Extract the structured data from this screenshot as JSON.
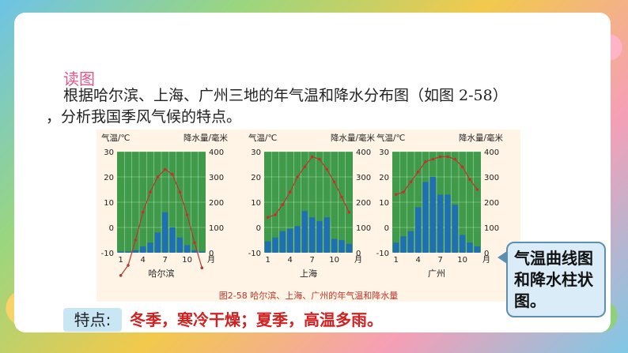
{
  "slide": {
    "heading": "读图",
    "paragraph_line1": "根据哈尔滨、上海、广州三地的年气温和降水分布图（如图 2-58）",
    "paragraph_line2": "，分析我国季风气候的特点。"
  },
  "figure": {
    "caption": "图2-58  哈尔滨、上海、广州的年气温和降水量"
  },
  "callout": {
    "text": "气温曲线图和降水柱状图。"
  },
  "feature": {
    "label": "特点:",
    "text": "冬季，寒冷干燥；夏季，高温多雨。"
  },
  "colors": {
    "plot_bg": "#3f9b4a",
    "bar": "#1f6fb5",
    "curve": "#c0342b",
    "heading": "#e0558a",
    "feature_text": "#d32020"
  },
  "chart_data": [
    {
      "type": "bar",
      "title": "哈尔滨",
      "left_axis_label": "气温/℃",
      "right_axis_label": "降水量/毫米",
      "x_unit": "月",
      "x_ticks": [
        "1",
        "4",
        "7",
        "10"
      ],
      "temp_ticks": [
        "30",
        "20",
        "10",
        "0",
        "-10"
      ],
      "precip_ticks": [
        "400",
        "300",
        "200",
        "100",
        "0"
      ],
      "ylim_temp": [
        -10,
        30
      ],
      "ylim_precip": [
        0,
        400
      ],
      "months": [
        1,
        2,
        3,
        4,
        5,
        6,
        7,
        8,
        9,
        10,
        11,
        12
      ],
      "temperature": [
        -19,
        -15,
        -5,
        6,
        14,
        20,
        23,
        21,
        14,
        5,
        -6,
        -16
      ],
      "precipitation": [
        5,
        5,
        10,
        25,
        40,
        80,
        160,
        100,
        60,
        30,
        10,
        5
      ]
    },
    {
      "type": "bar",
      "title": "上海",
      "left_axis_label": "气温/℃",
      "right_axis_label": "降水量/毫米",
      "x_unit": "月",
      "x_ticks": [
        "1",
        "4",
        "7",
        "10"
      ],
      "temp_ticks": [
        "30",
        "20",
        "10",
        "0",
        "-10"
      ],
      "precip_ticks": [
        "400",
        "300",
        "200",
        "100",
        "0"
      ],
      "ylim_temp": [
        -10,
        30
      ],
      "ylim_precip": [
        0,
        400
      ],
      "months": [
        1,
        2,
        3,
        4,
        5,
        6,
        7,
        8,
        9,
        10,
        11,
        12
      ],
      "temperature": [
        4,
        5,
        9,
        14,
        20,
        24,
        28,
        27,
        23,
        18,
        12,
        6
      ],
      "precipitation": [
        45,
        60,
        85,
        95,
        105,
        165,
        140,
        125,
        140,
        55,
        50,
        35
      ]
    },
    {
      "type": "bar",
      "title": "广州",
      "left_axis_label": "气温/℃",
      "right_axis_label": "降水量/毫米",
      "x_unit": "月",
      "x_ticks": [
        "1",
        "4",
        "7",
        "10"
      ],
      "temp_ticks": [
        "30",
        "20",
        "10",
        "0",
        "-10"
      ],
      "precip_ticks": [
        "400",
        "300",
        "200",
        "100",
        "0"
      ],
      "ylim_temp": [
        -10,
        30
      ],
      "ylim_precip": [
        0,
        400
      ],
      "months": [
        1,
        2,
        3,
        4,
        5,
        6,
        7,
        8,
        9,
        10,
        11,
        12
      ],
      "temperature": [
        13,
        14,
        18,
        22,
        26,
        27,
        28,
        28,
        27,
        24,
        19,
        15
      ],
      "precipitation": [
        40,
        65,
        85,
        180,
        280,
        300,
        230,
        230,
        190,
        70,
        40,
        25
      ]
    }
  ]
}
